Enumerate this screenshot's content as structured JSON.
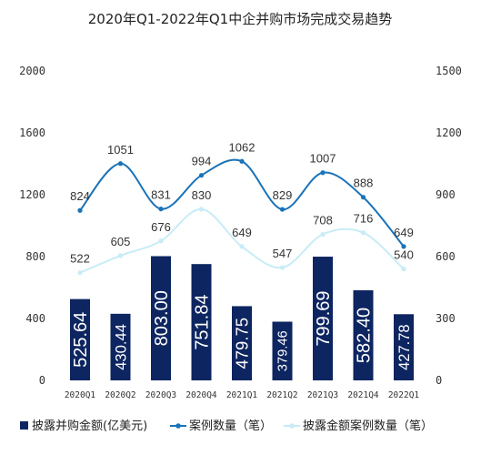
{
  "chart_data": {
    "type": "bar",
    "title": "2020年Q1-2022年Q1中企并购市场完成交易趋势",
    "categories": [
      "2020Q1",
      "2020Q2",
      "2020Q3",
      "2020Q4",
      "2021Q1",
      "2021Q2",
      "2021Q3",
      "2021Q4",
      "2022Q1"
    ],
    "left_axis": {
      "ylim": [
        0,
        2000
      ],
      "ticks": [
        "0",
        "400",
        "800",
        "1200",
        "1600",
        "2000"
      ]
    },
    "right_axis": {
      "ylim": [
        0,
        1500
      ],
      "ticks": [
        "0",
        "300",
        "600",
        "900",
        "1200",
        "1500"
      ]
    },
    "grid": false,
    "legend_position": "bottom",
    "series": [
      {
        "name": "披露并购金额(亿美元)",
        "kind": "bar",
        "axis": "left",
        "color": "#0d2560",
        "values": [
          525.64,
          430.44,
          803.0,
          751.84,
          479.75,
          379.46,
          799.69,
          582.4,
          427.78
        ],
        "labels": [
          "525.64",
          "430.44",
          "803.00",
          "751.84",
          "479.75",
          "379.46",
          "799.69",
          "582.40",
          "427.78"
        ]
      },
      {
        "name": "案例数量（笔）",
        "kind": "line",
        "axis": "right",
        "color": "#1a73b8",
        "values": [
          824,
          1051,
          831,
          994,
          1062,
          829,
          1007,
          888,
          649
        ]
      },
      {
        "name": "披露金额案例数量（笔）",
        "kind": "line",
        "axis": "right",
        "color": "#c8ecf7",
        "values": [
          522,
          605,
          676,
          830,
          649,
          547,
          708,
          716,
          540
        ]
      }
    ]
  }
}
